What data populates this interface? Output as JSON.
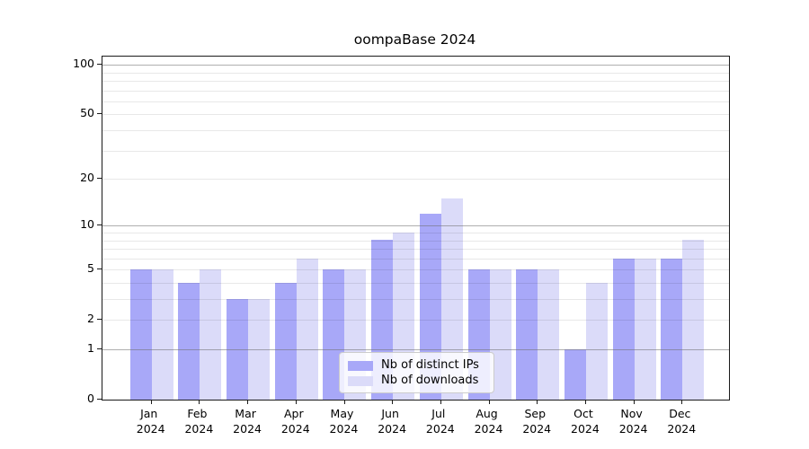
{
  "figure": {
    "background": "#ffffff"
  },
  "chart_data": {
    "type": "bar",
    "title": "oompaBase 2024",
    "categories": [
      "Jan",
      "Feb",
      "Mar",
      "Apr",
      "May",
      "Jun",
      "Jul",
      "Aug",
      "Sep",
      "Oct",
      "Nov",
      "Dec"
    ],
    "category_year": "2024",
    "series": [
      {
        "name": "Nb of distinct IPs",
        "color": "#a8a8f8",
        "values": [
          5,
          4,
          3,
          4,
          5,
          8,
          12,
          5,
          5,
          1,
          6,
          6
        ]
      },
      {
        "name": "Nb of downloads",
        "color": "#dbdbf9",
        "values": [
          5,
          5,
          3,
          6,
          5,
          9,
          15,
          5,
          5,
          4,
          6,
          8
        ]
      }
    ],
    "xlabel": "",
    "ylabel": "",
    "yscale": "log1p",
    "ylim": [
      0,
      113
    ],
    "yticks": [
      0,
      1,
      2,
      5,
      10,
      20,
      50,
      100
    ],
    "grid_major": [
      1,
      10,
      100
    ],
    "grid_minor": [
      2,
      3,
      4,
      5,
      6,
      7,
      8,
      9,
      20,
      30,
      40,
      50,
      60,
      70,
      80,
      90
    ],
    "grid": "on",
    "legend": {
      "position": "lower-center",
      "entries": [
        "Nb of distinct IPs",
        "Nb of downloads"
      ]
    },
    "colors": {
      "bar_dark": "#a8a8f8",
      "bar_light": "#dbdbf9",
      "grid_major": "#b0b0b0",
      "grid_minor": "#e8e8e8",
      "spine": "#1a1a1a"
    }
  }
}
